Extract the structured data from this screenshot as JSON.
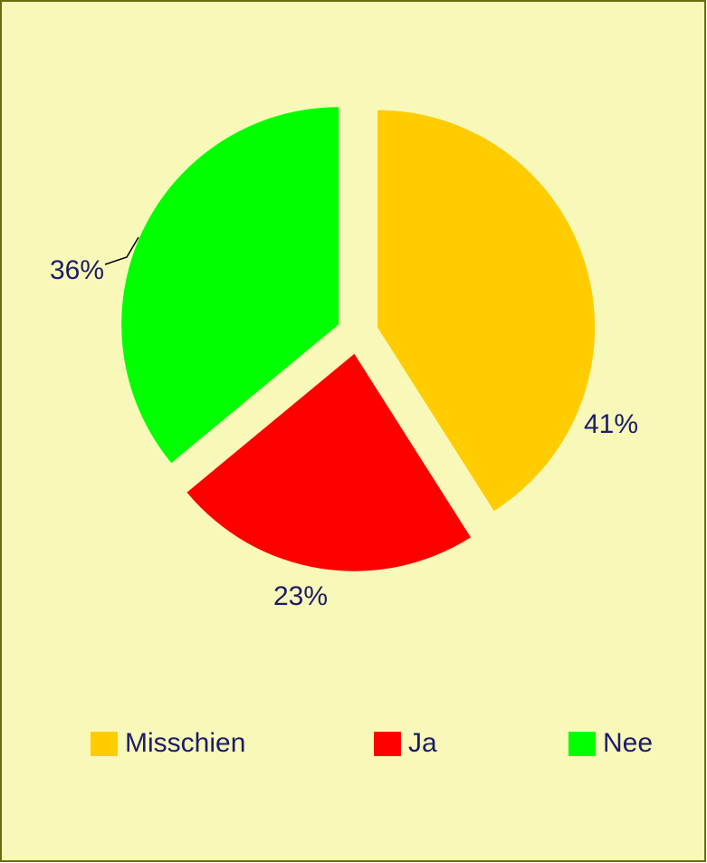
{
  "chart_data": {
    "type": "pie",
    "categories": [
      "Misschien",
      "Ja",
      "Nee"
    ],
    "values": [
      41,
      23,
      36
    ],
    "value_labels": [
      "41%",
      "23%",
      "36%"
    ],
    "colors": [
      "#ffcc00",
      "#ff0000",
      "#00ff00"
    ],
    "legend": "bottom"
  }
}
